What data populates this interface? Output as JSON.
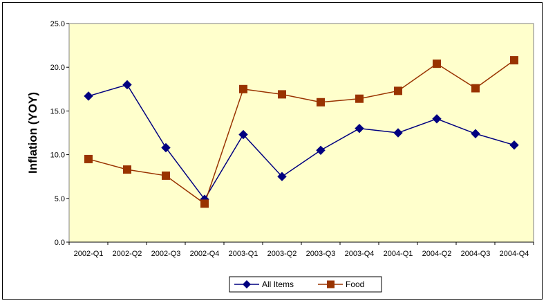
{
  "chart_data": {
    "type": "line",
    "title": "",
    "xlabel": "",
    "ylabel": "Inflation (YOY)",
    "categories": [
      "2002-Q1",
      "2002-Q2",
      "2002-Q3",
      "2002-Q4",
      "2003-Q1",
      "2003-Q2",
      "2003-Q3",
      "2003-Q4",
      "2004-Q1",
      "2004-Q2",
      "2004-Q3",
      "2004-Q4"
    ],
    "series": [
      {
        "name": "All Items",
        "color": "#000080",
        "marker": "diamond",
        "values": [
          16.7,
          18.0,
          10.8,
          4.9,
          12.3,
          7.5,
          10.5,
          13.0,
          12.5,
          14.1,
          12.4,
          11.1
        ]
      },
      {
        "name": "Food",
        "color": "#993300",
        "marker": "square",
        "values": [
          9.5,
          8.3,
          7.6,
          4.4,
          17.5,
          16.9,
          16.0,
          16.4,
          17.3,
          20.4,
          17.6,
          20.8
        ]
      }
    ],
    "ylim": [
      0,
      25
    ],
    "yticks": [
      "0.0",
      "5.0",
      "10.0",
      "15.0",
      "20.0",
      "25.0"
    ],
    "ytick_values": [
      0,
      5,
      10,
      15,
      20,
      25
    ],
    "plot_background": "#FFFFCC",
    "grid": false,
    "legend_position": "bottom"
  }
}
